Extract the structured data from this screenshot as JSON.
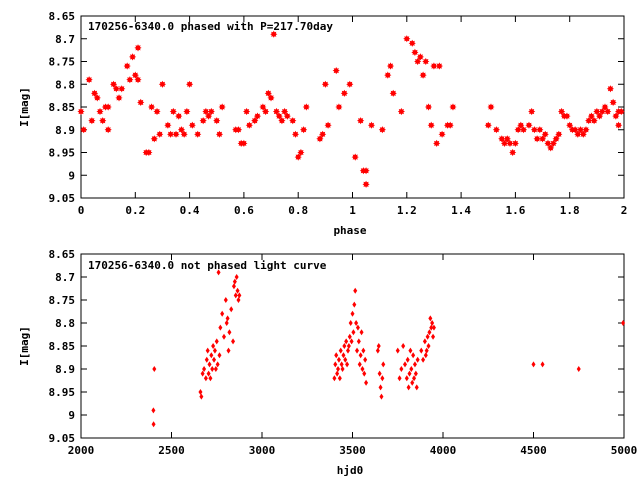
{
  "chart_data": [
    {
      "type": "scatter",
      "title": "170256-6340.0 phased with P=217.70day",
      "xlabel": "phase",
      "ylabel": "I[mag]",
      "xlim": [
        0,
        2
      ],
      "ylim": [
        9.05,
        8.65
      ],
      "y_inverted": true,
      "x_ticks": [
        "0",
        "0.2",
        "0.4",
        "0.6",
        "0.8",
        "1",
        "1.2",
        "1.4",
        "1.6",
        "1.8",
        "2"
      ],
      "y_ticks": [
        "8.65",
        "8.7",
        "8.75",
        "8.8",
        "8.85",
        "8.9",
        "8.95",
        "9",
        "9.05"
      ],
      "marker_color": "#ff0000",
      "marker": "star",
      "points": [
        [
          0.0,
          8.86
        ],
        [
          0.01,
          8.9
        ],
        [
          0.03,
          8.79
        ],
        [
          0.04,
          8.88
        ],
        [
          0.05,
          8.82
        ],
        [
          0.06,
          8.83
        ],
        [
          0.07,
          8.86
        ],
        [
          0.08,
          8.88
        ],
        [
          0.09,
          8.85
        ],
        [
          0.1,
          8.9
        ],
        [
          0.1,
          8.85
        ],
        [
          0.12,
          8.8
        ],
        [
          0.13,
          8.81
        ],
        [
          0.14,
          8.83
        ],
        [
          0.15,
          8.81
        ],
        [
          0.17,
          8.76
        ],
        [
          0.18,
          8.79
        ],
        [
          0.19,
          8.74
        ],
        [
          0.2,
          8.78
        ],
        [
          0.21,
          8.72
        ],
        [
          0.21,
          8.79
        ],
        [
          0.22,
          8.84
        ],
        [
          0.24,
          8.95
        ],
        [
          0.25,
          8.95
        ],
        [
          0.26,
          8.85
        ],
        [
          0.27,
          8.92
        ],
        [
          0.28,
          8.86
        ],
        [
          0.29,
          8.91
        ],
        [
          0.3,
          8.8
        ],
        [
          0.32,
          8.89
        ],
        [
          0.33,
          8.91
        ],
        [
          0.34,
          8.86
        ],
        [
          0.35,
          8.91
        ],
        [
          0.36,
          8.87
        ],
        [
          0.37,
          8.9
        ],
        [
          0.38,
          8.91
        ],
        [
          0.39,
          8.86
        ],
        [
          0.4,
          8.8
        ],
        [
          0.41,
          8.89
        ],
        [
          0.43,
          8.91
        ],
        [
          0.45,
          8.88
        ],
        [
          0.46,
          8.86
        ],
        [
          0.47,
          8.87
        ],
        [
          0.48,
          8.86
        ],
        [
          0.5,
          8.88
        ],
        [
          0.51,
          8.91
        ],
        [
          0.52,
          8.85
        ],
        [
          0.57,
          8.9
        ],
        [
          0.58,
          8.9
        ],
        [
          0.59,
          8.93
        ],
        [
          0.6,
          8.93
        ],
        [
          0.61,
          8.86
        ],
        [
          0.62,
          8.89
        ],
        [
          0.64,
          8.88
        ],
        [
          0.65,
          8.87
        ],
        [
          0.67,
          8.85
        ],
        [
          0.68,
          8.86
        ],
        [
          0.69,
          8.82
        ],
        [
          0.7,
          8.83
        ],
        [
          0.71,
          8.69
        ],
        [
          0.72,
          8.86
        ],
        [
          0.73,
          8.87
        ],
        [
          0.74,
          8.88
        ],
        [
          0.75,
          8.86
        ],
        [
          0.76,
          8.87
        ],
        [
          0.78,
          8.88
        ],
        [
          0.79,
          8.91
        ],
        [
          0.8,
          8.96
        ],
        [
          0.81,
          8.95
        ],
        [
          0.82,
          8.9
        ],
        [
          0.83,
          8.85
        ],
        [
          0.88,
          8.92
        ],
        [
          0.89,
          8.91
        ],
        [
          0.9,
          8.8
        ],
        [
          0.91,
          8.89
        ],
        [
          0.94,
          8.77
        ],
        [
          0.95,
          8.85
        ],
        [
          0.97,
          8.82
        ],
        [
          0.99,
          8.8
        ],
        [
          1.01,
          8.96
        ],
        [
          1.03,
          8.88
        ],
        [
          1.04,
          8.99
        ],
        [
          1.05,
          9.02
        ],
        [
          1.05,
          8.99
        ],
        [
          1.07,
          8.89
        ],
        [
          1.11,
          8.9
        ],
        [
          1.13,
          8.78
        ],
        [
          1.14,
          8.76
        ],
        [
          1.15,
          8.82
        ],
        [
          1.18,
          8.86
        ],
        [
          1.2,
          8.7
        ],
        [
          1.22,
          8.71
        ],
        [
          1.23,
          8.73
        ],
        [
          1.24,
          8.75
        ],
        [
          1.25,
          8.74
        ],
        [
          1.26,
          8.78
        ],
        [
          1.27,
          8.75
        ],
        [
          1.28,
          8.85
        ],
        [
          1.29,
          8.89
        ],
        [
          1.3,
          8.76
        ],
        [
          1.31,
          8.93
        ],
        [
          1.32,
          8.76
        ],
        [
          1.33,
          8.91
        ],
        [
          1.35,
          8.89
        ],
        [
          1.36,
          8.89
        ],
        [
          1.37,
          8.85
        ],
        [
          1.5,
          8.89
        ],
        [
          1.51,
          8.85
        ],
        [
          1.53,
          8.9
        ],
        [
          1.55,
          8.92
        ],
        [
          1.56,
          8.93
        ],
        [
          1.57,
          8.92
        ],
        [
          1.58,
          8.93
        ],
        [
          1.59,
          8.95
        ],
        [
          1.6,
          8.93
        ],
        [
          1.61,
          8.9
        ],
        [
          1.62,
          8.89
        ],
        [
          1.63,
          8.9
        ],
        [
          1.65,
          8.89
        ],
        [
          1.66,
          8.86
        ],
        [
          1.67,
          8.9
        ],
        [
          1.68,
          8.92
        ],
        [
          1.69,
          8.9
        ],
        [
          1.7,
          8.92
        ],
        [
          1.71,
          8.91
        ],
        [
          1.72,
          8.93
        ],
        [
          1.73,
          8.94
        ],
        [
          1.74,
          8.93
        ],
        [
          1.75,
          8.92
        ],
        [
          1.76,
          8.91
        ],
        [
          1.77,
          8.86
        ],
        [
          1.78,
          8.87
        ],
        [
          1.79,
          8.87
        ],
        [
          1.8,
          8.89
        ],
        [
          1.81,
          8.9
        ],
        [
          1.82,
          8.9
        ],
        [
          1.83,
          8.91
        ],
        [
          1.84,
          8.9
        ],
        [
          1.85,
          8.91
        ],
        [
          1.86,
          8.9
        ],
        [
          1.87,
          8.88
        ],
        [
          1.88,
          8.87
        ],
        [
          1.89,
          8.88
        ],
        [
          1.9,
          8.86
        ],
        [
          1.91,
          8.87
        ],
        [
          1.92,
          8.86
        ],
        [
          1.93,
          8.85
        ],
        [
          1.94,
          8.86
        ],
        [
          1.95,
          8.81
        ],
        [
          1.96,
          8.84
        ],
        [
          1.97,
          8.87
        ],
        [
          1.98,
          8.86
        ],
        [
          1.99,
          8.86
        ],
        [
          1.98,
          8.89
        ]
      ]
    },
    {
      "type": "scatter",
      "title": "170256-6340.0 not phased light curve",
      "xlabel": "hjd0",
      "ylabel": "I[mag]",
      "xlim": [
        2000,
        5000
      ],
      "ylim": [
        9.05,
        8.65
      ],
      "y_inverted": true,
      "x_ticks": [
        "2000",
        "2500",
        "3000",
        "3500",
        "4000",
        "4500",
        "5000"
      ],
      "y_ticks": [
        "8.65",
        "8.7",
        "8.75",
        "8.8",
        "8.85",
        "8.9",
        "8.95",
        "9",
        "9.05"
      ],
      "marker_color": "#ff0000",
      "marker": "diamond",
      "points": [
        [
          2400,
          8.99
        ],
        [
          2401,
          9.02
        ],
        [
          2405,
          8.9
        ],
        [
          2660,
          8.95
        ],
        [
          2665,
          8.96
        ],
        [
          2672,
          8.91
        ],
        [
          2680,
          8.9
        ],
        [
          2690,
          8.92
        ],
        [
          2695,
          8.88
        ],
        [
          2700,
          8.86
        ],
        [
          2705,
          8.91
        ],
        [
          2710,
          8.89
        ],
        [
          2715,
          8.92
        ],
        [
          2720,
          8.87
        ],
        [
          2725,
          8.9
        ],
        [
          2730,
          8.85
        ],
        [
          2735,
          8.88
        ],
        [
          2740,
          8.86
        ],
        [
          2745,
          8.9
        ],
        [
          2750,
          8.84
        ],
        [
          2755,
          8.89
        ],
        [
          2760,
          8.69
        ],
        [
          2765,
          8.87
        ],
        [
          2770,
          8.81
        ],
        [
          2780,
          8.78
        ],
        [
          2790,
          8.83
        ],
        [
          2800,
          8.75
        ],
        [
          2805,
          8.8
        ],
        [
          2810,
          8.79
        ],
        [
          2815,
          8.86
        ],
        [
          2820,
          8.82
        ],
        [
          2830,
          8.77
        ],
        [
          2840,
          8.84
        ],
        [
          2845,
          8.72
        ],
        [
          2850,
          8.71
        ],
        [
          2855,
          8.74
        ],
        [
          2860,
          8.7
        ],
        [
          2865,
          8.73
        ],
        [
          2870,
          8.75
        ],
        [
          2875,
          8.74
        ],
        [
          3400,
          8.92
        ],
        [
          3405,
          8.89
        ],
        [
          3410,
          8.87
        ],
        [
          3415,
          8.91
        ],
        [
          3420,
          8.9
        ],
        [
          3425,
          8.88
        ],
        [
          3430,
          8.92
        ],
        [
          3435,
          8.86
        ],
        [
          3440,
          8.89
        ],
        [
          3445,
          8.9
        ],
        [
          3450,
          8.87
        ],
        [
          3455,
          8.85
        ],
        [
          3460,
          8.88
        ],
        [
          3465,
          8.84
        ],
        [
          3470,
          8.89
        ],
        [
          3475,
          8.86
        ],
        [
          3480,
          8.85
        ],
        [
          3485,
          8.83
        ],
        [
          3490,
          8.8
        ],
        [
          3495,
          8.84
        ],
        [
          3500,
          8.78
        ],
        [
          3505,
          8.82
        ],
        [
          3510,
          8.76
        ],
        [
          3515,
          8.73
        ],
        [
          3520,
          8.8
        ],
        [
          3525,
          8.86
        ],
        [
          3530,
          8.81
        ],
        [
          3535,
          8.84
        ],
        [
          3540,
          8.89
        ],
        [
          3545,
          8.87
        ],
        [
          3550,
          8.82
        ],
        [
          3555,
          8.9
        ],
        [
          3560,
          8.86
        ],
        [
          3565,
          8.91
        ],
        [
          3570,
          8.88
        ],
        [
          3575,
          8.93
        ],
        [
          3640,
          8.86
        ],
        [
          3645,
          8.85
        ],
        [
          3650,
          8.91
        ],
        [
          3655,
          8.94
        ],
        [
          3660,
          8.96
        ],
        [
          3665,
          8.92
        ],
        [
          3670,
          8.89
        ],
        [
          3750,
          8.86
        ],
        [
          3760,
          8.92
        ],
        [
          3770,
          8.9
        ],
        [
          3780,
          8.85
        ],
        [
          3790,
          8.89
        ],
        [
          3800,
          8.92
        ],
        [
          3805,
          8.88
        ],
        [
          3810,
          8.94
        ],
        [
          3815,
          8.91
        ],
        [
          3820,
          8.86
        ],
        [
          3825,
          8.9
        ],
        [
          3830,
          8.93
        ],
        [
          3835,
          8.87
        ],
        [
          3840,
          8.92
        ],
        [
          3845,
          8.89
        ],
        [
          3850,
          8.91
        ],
        [
          3855,
          8.94
        ],
        [
          3860,
          8.88
        ],
        [
          3880,
          8.86
        ],
        [
          3890,
          8.88
        ],
        [
          3900,
          8.84
        ],
        [
          3905,
          8.87
        ],
        [
          3910,
          8.86
        ],
        [
          3915,
          8.83
        ],
        [
          3920,
          8.85
        ],
        [
          3925,
          8.82
        ],
        [
          3930,
          8.79
        ],
        [
          3935,
          8.81
        ],
        [
          3940,
          8.8
        ],
        [
          3945,
          8.83
        ],
        [
          3950,
          8.81
        ],
        [
          4500,
          8.89
        ],
        [
          4550,
          8.89
        ],
        [
          4750,
          8.9
        ],
        [
          4995,
          8.8
        ]
      ]
    }
  ]
}
